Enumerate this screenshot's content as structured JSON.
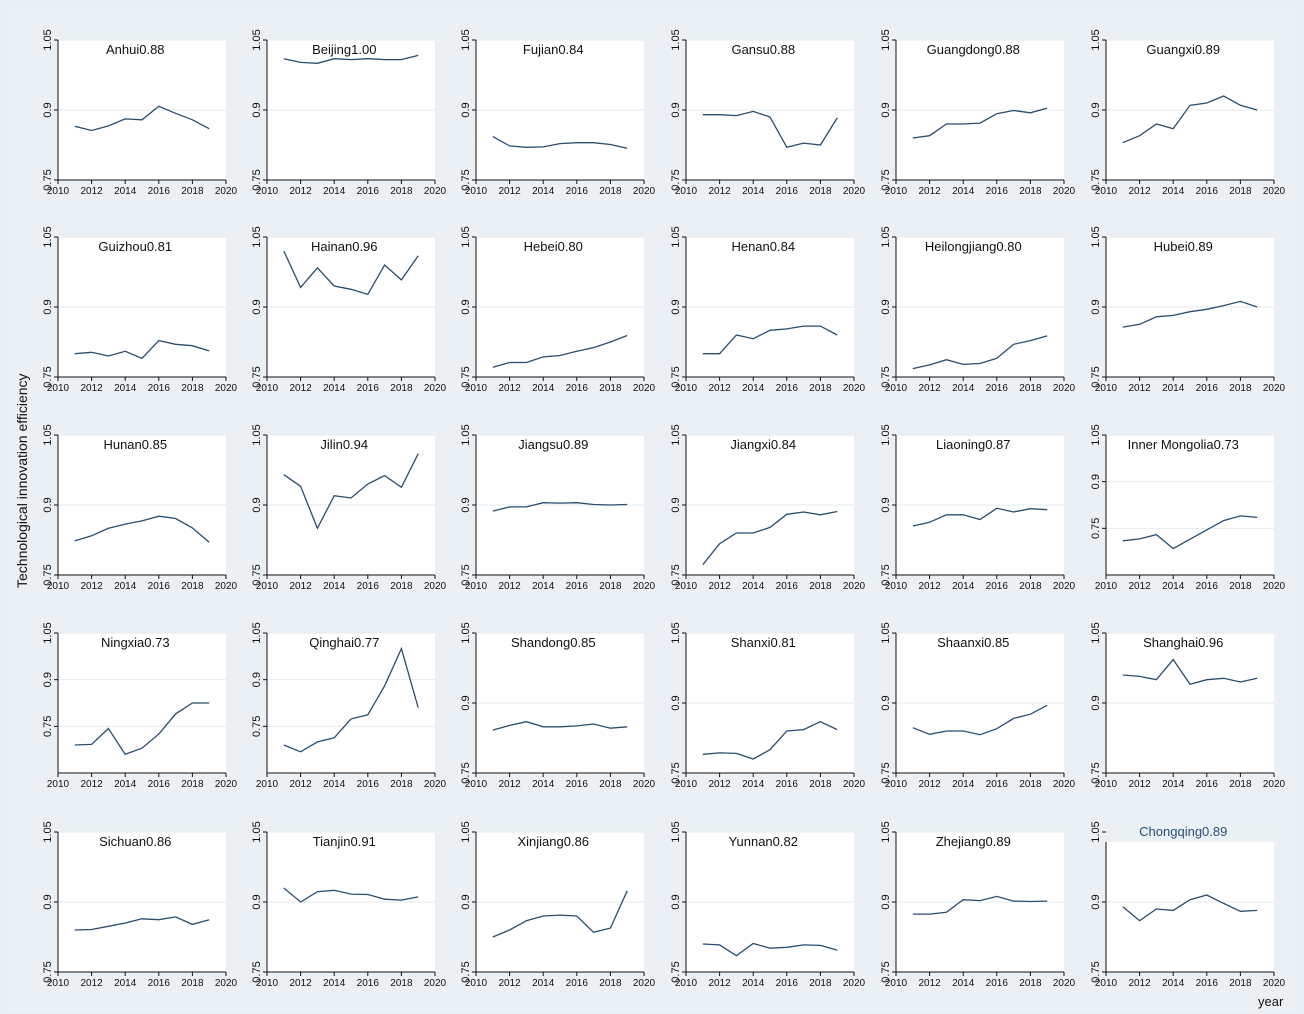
{
  "axis_labels": {
    "y": "Technological innovation efficiency",
    "x": "year"
  },
  "chart_data": {
    "type": "line",
    "layout": "small-multiples",
    "x_ticks": [
      2010,
      2012,
      2014,
      2016,
      2018,
      2020
    ],
    "x_range": [
      2010,
      2020
    ],
    "y_ticks": [
      0.75,
      0.9,
      1.05
    ],
    "y_tick_labels": [
      "0.75",
      "0.9",
      "1.05"
    ],
    "grid": "horizontal",
    "line_color": "#2b4c6f",
    "years": [
      2011,
      2012,
      2013,
      2014,
      2015,
      2016,
      2017,
      2018,
      2019
    ],
    "panels": [
      {
        "title": "Anhui0.88",
        "ylim": [
          0.75,
          1.05
        ],
        "values": [
          0.865,
          0.856,
          0.866,
          0.881,
          0.879,
          0.908,
          0.893,
          0.879,
          0.86
        ]
      },
      {
        "title": "Beijing1.00",
        "ylim": [
          0.75,
          1.05
        ],
        "values": [
          1.01,
          1.002,
          1.0,
          1.01,
          1.008,
          1.01,
          1.008,
          1.008,
          1.017
        ]
      },
      {
        "title": "Fujian0.84",
        "ylim": [
          0.75,
          1.05
        ],
        "values": [
          0.843,
          0.823,
          0.82,
          0.821,
          0.828,
          0.83,
          0.83,
          0.826,
          0.818
        ]
      },
      {
        "title": "Gansu0.88",
        "ylim": [
          0.75,
          1.05
        ],
        "values": [
          0.89,
          0.89,
          0.888,
          0.897,
          0.885,
          0.82,
          0.829,
          0.825,
          0.883
        ]
      },
      {
        "title": "Guangdong0.88",
        "ylim": [
          0.75,
          1.05
        ],
        "values": [
          0.84,
          0.845,
          0.87,
          0.87,
          0.872,
          0.892,
          0.899,
          0.894,
          0.904
        ]
      },
      {
        "title": "Guangxi0.89",
        "ylim": [
          0.75,
          1.05
        ],
        "values": [
          0.83,
          0.845,
          0.87,
          0.86,
          0.91,
          0.915,
          0.93,
          0.91,
          0.9
        ]
      },
      {
        "title": "Guizhou0.81",
        "ylim": [
          0.75,
          1.05
        ],
        "values": [
          0.8,
          0.803,
          0.795,
          0.805,
          0.79,
          0.828,
          0.82,
          0.817,
          0.806
        ]
      },
      {
        "title": "Hainan0.96",
        "ylim": [
          0.75,
          1.05
        ],
        "values": [
          1.02,
          0.942,
          0.984,
          0.945,
          0.938,
          0.927,
          0.99,
          0.958,
          1.01
        ]
      },
      {
        "title": "Hebei0.80",
        "ylim": [
          0.75,
          1.05
        ],
        "values": [
          0.771,
          0.781,
          0.781,
          0.793,
          0.796,
          0.805,
          0.813,
          0.825,
          0.839
        ]
      },
      {
        "title": "Henan0.84",
        "ylim": [
          0.75,
          1.05
        ],
        "values": [
          0.8,
          0.8,
          0.84,
          0.832,
          0.85,
          0.853,
          0.859,
          0.859,
          0.84
        ]
      },
      {
        "title": "Heilongjiang0.80",
        "ylim": [
          0.75,
          1.05
        ],
        "values": [
          0.768,
          0.776,
          0.787,
          0.777,
          0.779,
          0.79,
          0.82,
          0.828,
          0.838
        ]
      },
      {
        "title": "Hubei0.89",
        "ylim": [
          0.75,
          1.05
        ],
        "values": [
          0.857,
          0.863,
          0.879,
          0.882,
          0.89,
          0.895,
          0.903,
          0.912,
          0.9
        ]
      },
      {
        "title": "Hunan0.85",
        "ylim": [
          0.75,
          1.05
        ],
        "values": [
          0.823,
          0.834,
          0.85,
          0.859,
          0.866,
          0.876,
          0.871,
          0.851,
          0.82
        ]
      },
      {
        "title": "Jilin0.94",
        "ylim": [
          0.75,
          1.05
        ],
        "values": [
          0.965,
          0.94,
          0.85,
          0.92,
          0.915,
          0.945,
          0.963,
          0.938,
          1.01
        ]
      },
      {
        "title": "Jiangsu0.89",
        "ylim": [
          0.75,
          1.05
        ],
        "values": [
          0.887,
          0.896,
          0.896,
          0.905,
          0.904,
          0.905,
          0.901,
          0.9,
          0.901
        ]
      },
      {
        "title": "Jiangxi0.84",
        "ylim": [
          0.75,
          1.05
        ],
        "values": [
          0.772,
          0.817,
          0.84,
          0.84,
          0.852,
          0.88,
          0.885,
          0.879,
          0.886
        ]
      },
      {
        "title": "Liaoning0.87",
        "ylim": [
          0.75,
          1.05
        ],
        "values": [
          0.855,
          0.863,
          0.879,
          0.879,
          0.869,
          0.893,
          0.885,
          0.892,
          0.89
        ]
      },
      {
        "title": "Inner Mongolia0.73",
        "ylim": [
          0.6,
          1.05
        ],
        "y_ticks": [
          0.75,
          0.9,
          1.05
        ],
        "values": [
          0.71,
          0.716,
          0.73,
          0.685,
          0.715,
          0.745,
          0.775,
          0.79,
          0.785
        ]
      },
      {
        "title": "Ningxia0.73",
        "ylim": [
          0.6,
          1.05
        ],
        "y_ticks": [
          0.75,
          0.9,
          1.05
        ],
        "values": [
          0.69,
          0.692,
          0.743,
          0.66,
          0.68,
          0.725,
          0.79,
          0.825,
          0.825
        ]
      },
      {
        "title": "Qinghai0.77",
        "ylim": [
          0.6,
          1.05
        ],
        "y_ticks": [
          0.75,
          0.9,
          1.05
        ],
        "values": [
          0.69,
          0.668,
          0.7,
          0.713,
          0.774,
          0.787,
          0.88,
          1.0,
          0.81
        ]
      },
      {
        "title": "Shandong0.85",
        "ylim": [
          0.75,
          1.05
        ],
        "values": [
          0.842,
          0.852,
          0.86,
          0.849,
          0.849,
          0.851,
          0.855,
          0.846,
          0.849
        ]
      },
      {
        "title": "Shanxi0.81",
        "ylim": [
          0.75,
          1.05
        ],
        "values": [
          0.79,
          0.793,
          0.792,
          0.78,
          0.8,
          0.84,
          0.843,
          0.86,
          0.843
        ]
      },
      {
        "title": "Shaanxi0.85",
        "ylim": [
          0.75,
          1.05
        ],
        "values": [
          0.847,
          0.833,
          0.84,
          0.84,
          0.832,
          0.845,
          0.867,
          0.876,
          0.895
        ]
      },
      {
        "title": "Shanghai0.96",
        "ylim": [
          0.75,
          1.05
        ],
        "values": [
          0.96,
          0.957,
          0.95,
          0.993,
          0.94,
          0.95,
          0.953,
          0.945,
          0.953
        ]
      },
      {
        "title": "Sichuan0.86",
        "ylim": [
          0.75,
          1.05
        ],
        "values": [
          0.84,
          0.841,
          0.848,
          0.855,
          0.864,
          0.862,
          0.868,
          0.852,
          0.862
        ]
      },
      {
        "title": "Tianjin0.91",
        "ylim": [
          0.75,
          1.05
        ],
        "values": [
          0.93,
          0.9,
          0.922,
          0.925,
          0.917,
          0.916,
          0.906,
          0.904,
          0.911
        ]
      },
      {
        "title": "Xinjiang0.86",
        "ylim": [
          0.75,
          1.05
        ],
        "values": [
          0.825,
          0.84,
          0.86,
          0.87,
          0.872,
          0.87,
          0.835,
          0.844,
          0.924
        ]
      },
      {
        "title": "Yunnan0.82",
        "ylim": [
          0.75,
          1.05
        ],
        "values": [
          0.81,
          0.808,
          0.785,
          0.811,
          0.801,
          0.803,
          0.808,
          0.807,
          0.797
        ]
      },
      {
        "title": "Zhejiang0.89",
        "ylim": [
          0.75,
          1.05
        ],
        "values": [
          0.874,
          0.874,
          0.878,
          0.905,
          0.903,
          0.912,
          0.902,
          0.901,
          0.902
        ]
      },
      {
        "title": "Chongqing0.89",
        "ylim": [
          0.75,
          1.05
        ],
        "values": [
          0.89,
          0.86,
          0.885,
          0.882,
          0.905,
          0.915,
          0.897,
          0.88,
          0.882
        ]
      }
    ]
  }
}
